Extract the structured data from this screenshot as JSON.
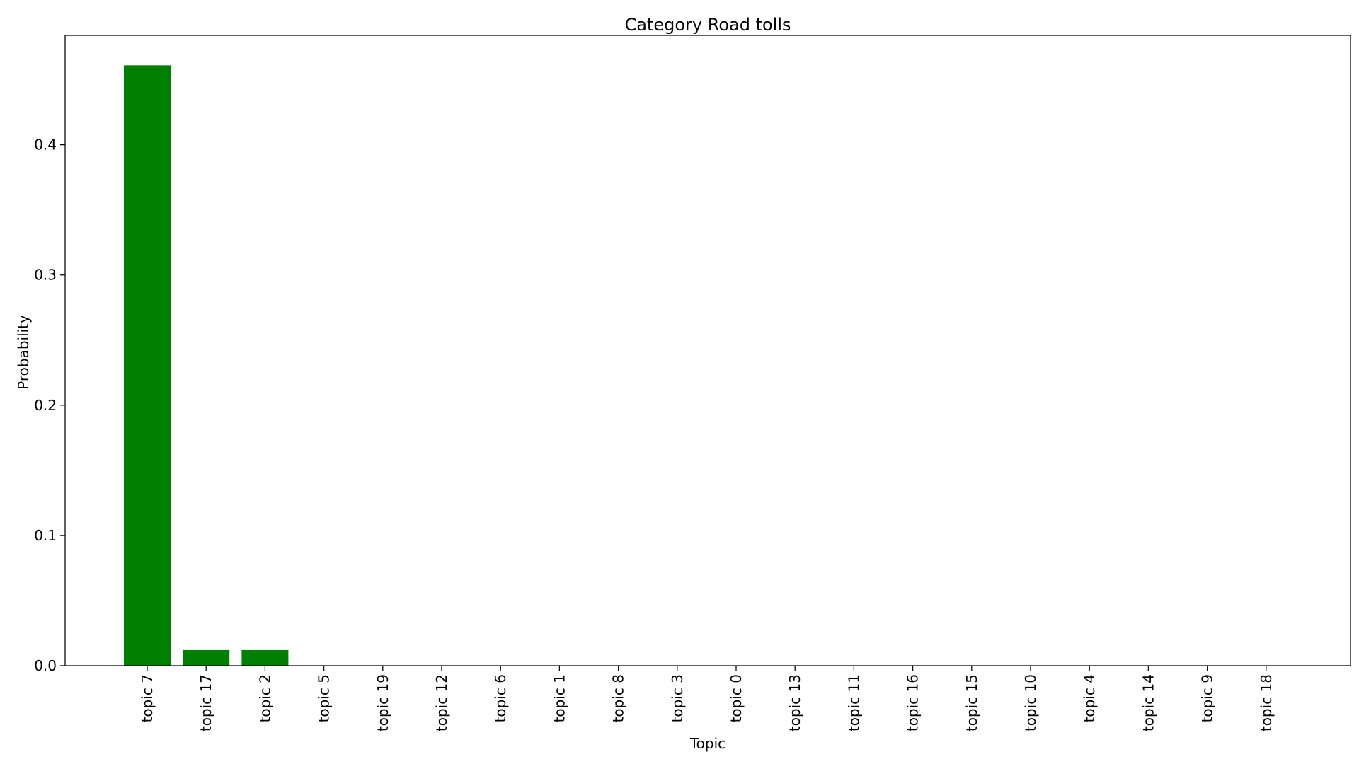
{
  "chart_data": {
    "type": "bar",
    "title": "Category Road tolls",
    "xlabel": "Topic",
    "ylabel": "Probability",
    "categories": [
      "topic 7",
      "topic 17",
      "topic 2",
      "topic 5",
      "topic 19",
      "topic 12",
      "topic 6",
      "topic 1",
      "topic 8",
      "topic 3",
      "topic 0",
      "topic 13",
      "topic 11",
      "topic 16",
      "topic 15",
      "topic 10",
      "topic 4",
      "topic 14",
      "topic 9",
      "topic 18"
    ],
    "values": [
      0.461,
      0.012,
      0.012,
      0,
      0,
      0,
      0,
      0,
      0,
      0,
      0,
      0,
      0,
      0,
      0,
      0,
      0,
      0,
      0,
      0
    ],
    "ylim": [
      0,
      0.484
    ],
    "yticks": [
      0.0,
      0.1,
      0.2,
      0.3,
      0.4
    ],
    "ytick_labels": [
      "0.0",
      "0.1",
      "0.2",
      "0.3",
      "0.4"
    ],
    "bar_color": "#008000",
    "grid": false,
    "legend": "none"
  }
}
